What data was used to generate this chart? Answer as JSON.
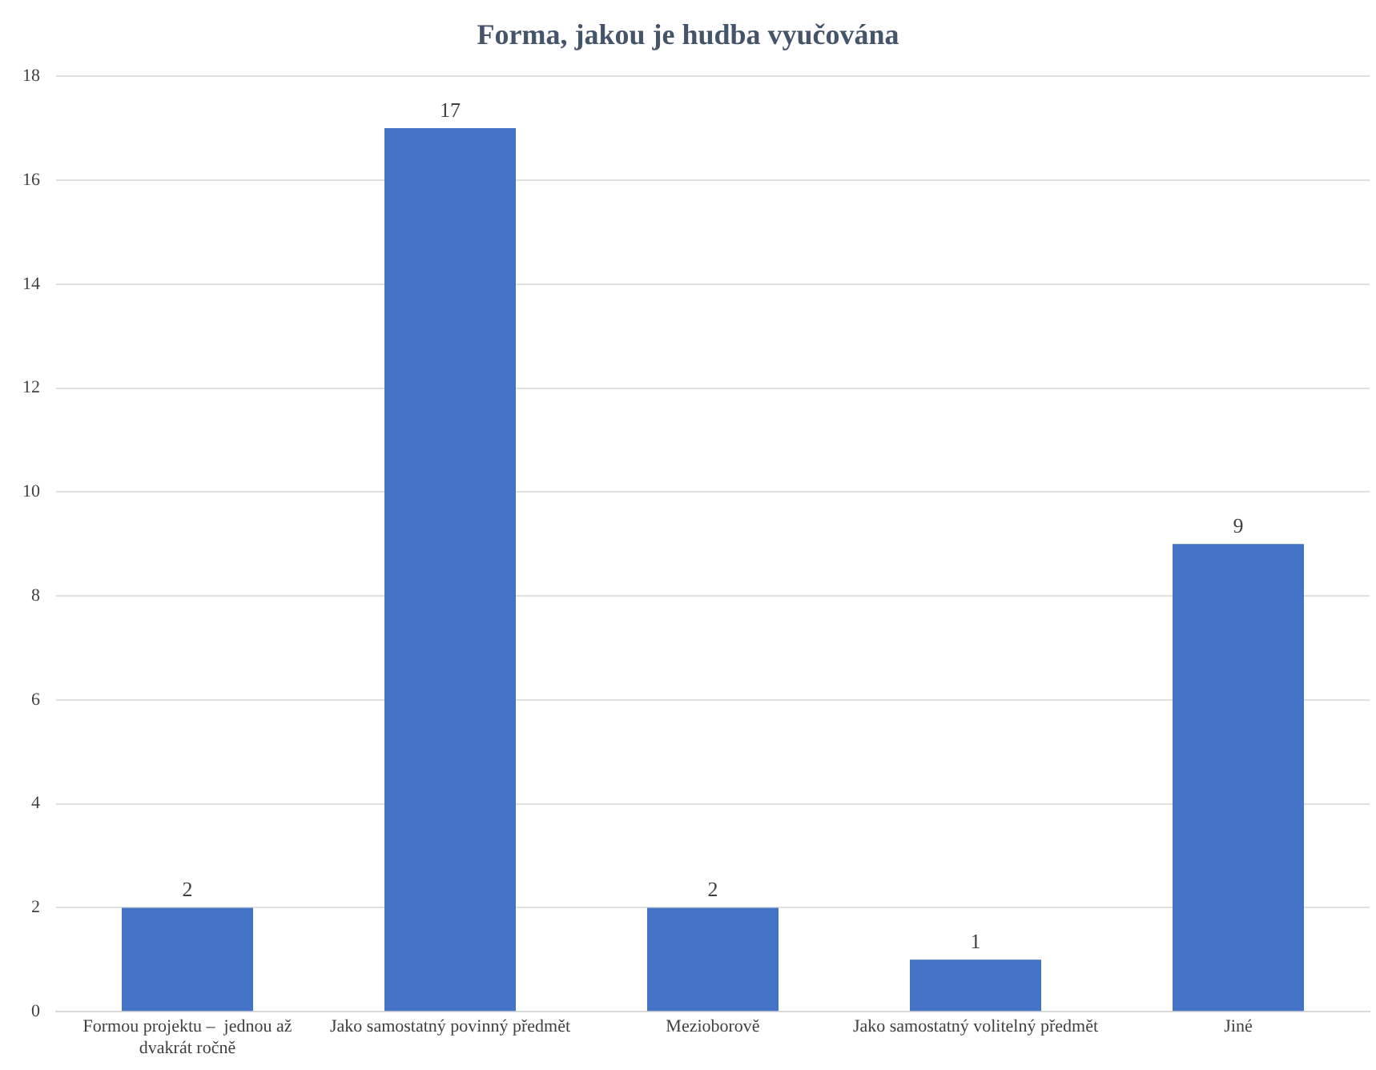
{
  "chart_data": {
    "type": "bar",
    "title": "Forma, jakou je hudba vyučována",
    "categories": [
      "Formou projektu –  jednou až dvakrát ročně",
      "Jako samostatný povinný předmět",
      "Mezioborově",
      "Jako samostatný volitelný předmět",
      "Jiné"
    ],
    "values": [
      2,
      17,
      2,
      1,
      9
    ],
    "color": "#4472c4",
    "ylim": [
      0,
      18
    ],
    "yticks": [
      0,
      2,
      4,
      6,
      8,
      10,
      12,
      14,
      16,
      18
    ],
    "grid": "y",
    "data_labels": true,
    "legend": false
  }
}
